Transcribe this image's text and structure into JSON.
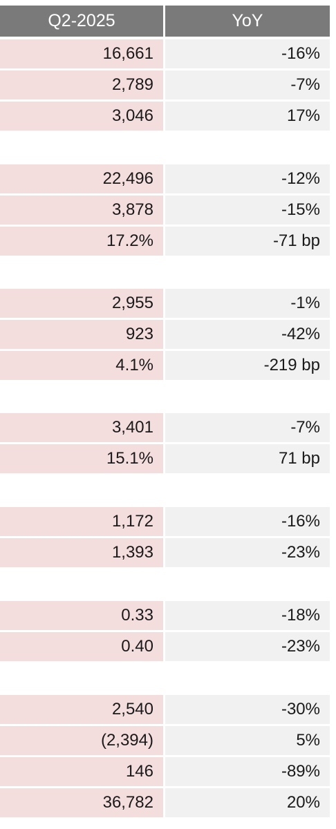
{
  "header": {
    "col1": "Q2-2025",
    "col2": "YoY"
  },
  "groups": [
    {
      "rows": [
        {
          "value": "16,661",
          "yoy": "-16%"
        },
        {
          "value": "2,789",
          "yoy": "-7%"
        },
        {
          "value": "3,046",
          "yoy": "17%"
        }
      ]
    },
    {
      "rows": [
        {
          "value": "22,496",
          "yoy": "-12%"
        },
        {
          "value": "3,878",
          "yoy": "-15%"
        },
        {
          "value": "17.2%",
          "yoy": "-71 bp"
        }
      ]
    },
    {
      "rows": [
        {
          "value": "2,955",
          "yoy": "-1%"
        },
        {
          "value": "923",
          "yoy": "-42%"
        },
        {
          "value": "4.1%",
          "yoy": "-219 bp"
        }
      ]
    },
    {
      "rows": [
        {
          "value": "3,401",
          "yoy": "-7%"
        },
        {
          "value": "15.1%",
          "yoy": "71 bp"
        }
      ]
    },
    {
      "rows": [
        {
          "value": "1,172",
          "yoy": "-16%"
        },
        {
          "value": "1,393",
          "yoy": "-23%"
        }
      ]
    },
    {
      "rows": [
        {
          "value": "0.33",
          "yoy": "-18%"
        },
        {
          "value": "0.40",
          "yoy": "-23%"
        }
      ]
    },
    {
      "rows": [
        {
          "value": "2,540",
          "yoy": "-30%"
        },
        {
          "value": "(2,394)",
          "yoy": "5%"
        },
        {
          "value": "146",
          "yoy": "-89%"
        },
        {
          "value": "36,782",
          "yoy": "20%"
        }
      ]
    }
  ]
}
